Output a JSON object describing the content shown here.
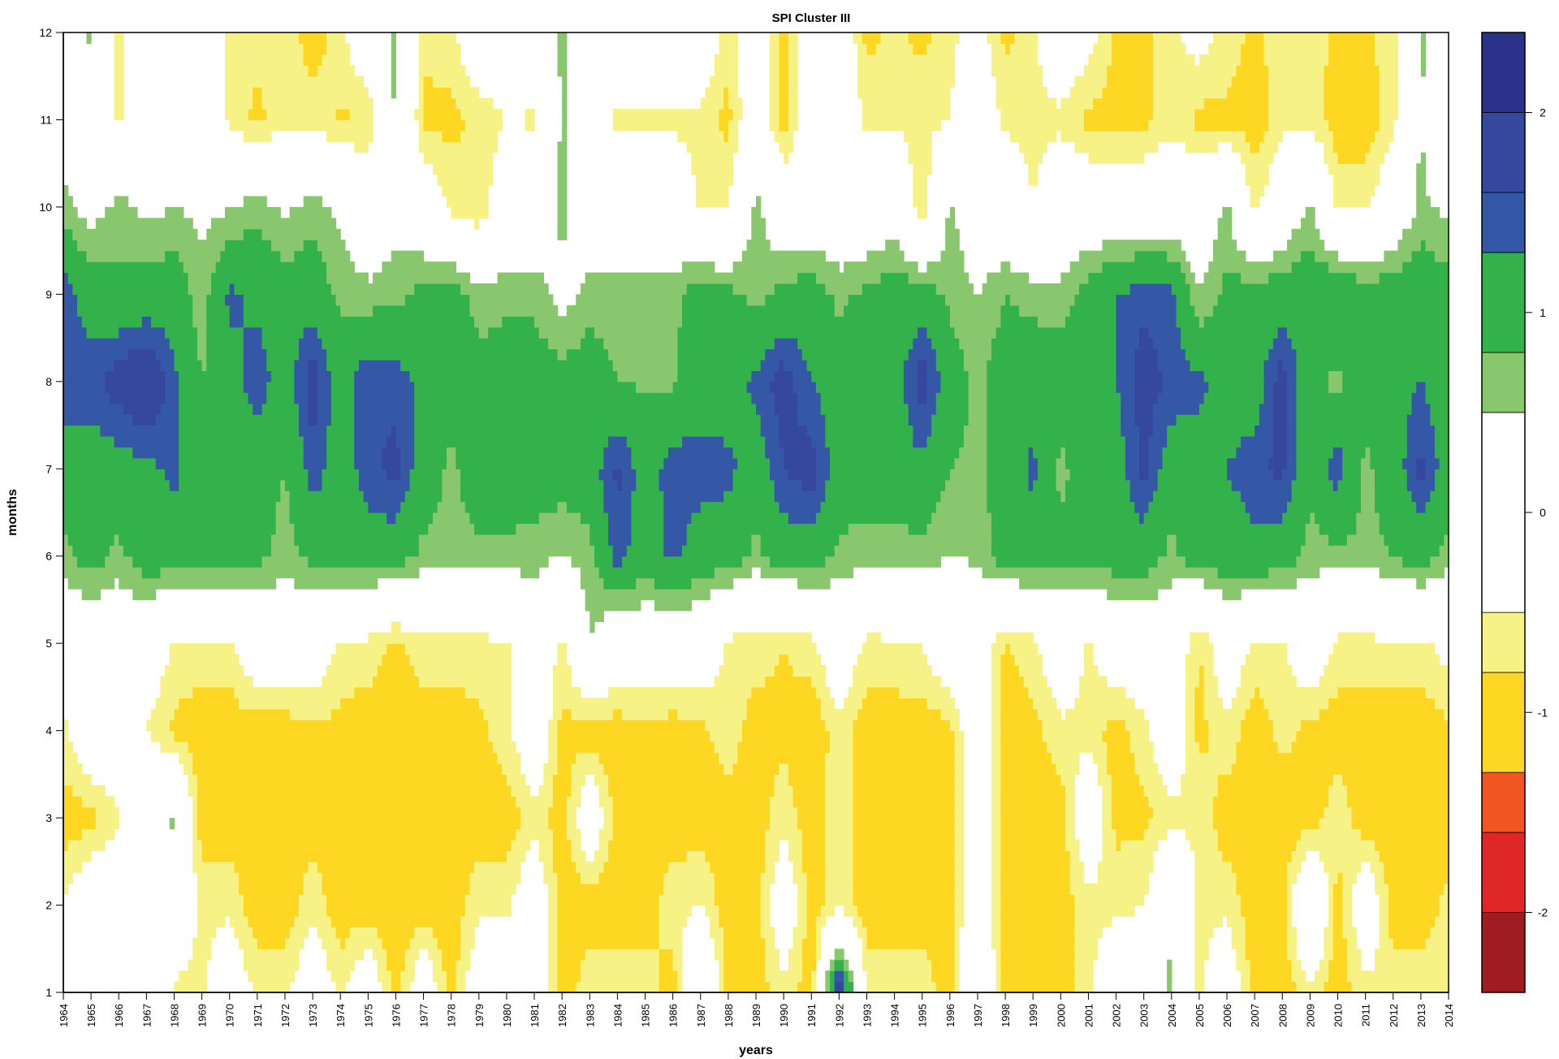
{
  "chart_data": {
    "type": "heatmap",
    "subtype": "filled-contour",
    "title": "SPI Cluster III",
    "xlabel": "years",
    "ylabel": "months",
    "x": [
      1964,
      1965,
      1966,
      1967,
      1968,
      1969,
      1970,
      1971,
      1972,
      1973,
      1974,
      1975,
      1976,
      1977,
      1978,
      1979,
      1980,
      1981,
      1982,
      1983,
      1984,
      1985,
      1986,
      1987,
      1988,
      1989,
      1990,
      1991,
      1992,
      1993,
      1994,
      1995,
      1996,
      1997,
      1998,
      1999,
      2000,
      2001,
      2002,
      2003,
      2004,
      2005,
      2006,
      2007,
      2008,
      2009,
      2010,
      2011,
      2012,
      2013,
      2014
    ],
    "y": [
      1,
      2,
      3,
      4,
      5,
      6,
      7,
      8,
      9,
      10,
      11,
      12
    ],
    "xlim": [
      1964,
      2014
    ],
    "ylim": [
      1,
      12
    ],
    "x_ticks": [
      "1964",
      "1965",
      "1966",
      "1967",
      "1968",
      "1969",
      "1970",
      "1971",
      "1972",
      "1973",
      "1974",
      "1975",
      "1976",
      "1977",
      "1978",
      "1979",
      "1980",
      "1981",
      "1982",
      "1983",
      "1984",
      "1985",
      "1986",
      "1987",
      "1988",
      "1989",
      "1990",
      "1991",
      "1992",
      "1993",
      "1994",
      "1995",
      "1996",
      "1997",
      "1998",
      "1999",
      "2000",
      "2001",
      "2002",
      "2003",
      "2004",
      "2005",
      "2006",
      "2007",
      "2008",
      "2009",
      "2010",
      "2011",
      "2012",
      "2013",
      "2014"
    ],
    "y_ticks": [
      "1",
      "2",
      "3",
      "4",
      "5",
      "6",
      "7",
      "8",
      "9",
      "10",
      "11",
      "12"
    ],
    "z_by_month": {
      "1": [
        0,
        0,
        0,
        0.55,
        -0.6,
        -0.6,
        0,
        -0.6,
        -0.6,
        0,
        -0.6,
        0,
        -1.0,
        0,
        -1.0,
        0,
        0,
        0,
        -1.0,
        -0.6,
        -0.6,
        -0.6,
        -1.0,
        0.55,
        -1.0,
        -1.0,
        -0.6,
        -1.0,
        2.1,
        -0.6,
        -0.6,
        -0.6,
        -1.0,
        0.4,
        -1.0,
        -1.0,
        -1.0,
        -0.6,
        0,
        0,
        0.6,
        -0.6,
        0,
        -1.0,
        -1.0,
        -0.6,
        -1.0,
        -0.6,
        -0.6,
        -0.6,
        -0.6
      ],
      "2": [
        -0.5,
        0,
        0,
        -0.55,
        0,
        -0.6,
        -0.6,
        -1.0,
        -1.0,
        -0.6,
        -1.0,
        -1.0,
        -1.0,
        -1.0,
        -1.0,
        -0.6,
        -0.6,
        0,
        -1.0,
        -1.0,
        -1.0,
        -1.0,
        -0.6,
        -0.5,
        -1.0,
        -1.0,
        0,
        -1.0,
        -0.6,
        -1.0,
        -1.0,
        -1.0,
        -0.9,
        0,
        -1.0,
        -1.0,
        -1.0,
        -0.6,
        -0.6,
        -0.5,
        0.5,
        -0.6,
        -0.6,
        -1.0,
        -1.0,
        0.5,
        -1.0,
        0,
        -1.0,
        -1.0,
        -0.7
      ],
      "3": [
        -1.0,
        -0.9,
        -0.55,
        0,
        0.6,
        -1.0,
        -1.0,
        -1.0,
        -1.0,
        -1.0,
        -0.9,
        -1.0,
        -1.0,
        -1.0,
        -1.0,
        -1.0,
        -1.0,
        -0.6,
        -1.0,
        0,
        -1.0,
        -1.0,
        -1.0,
        -1.0,
        -1.0,
        -1.0,
        -0.6,
        -1.0,
        -0.6,
        -1.0,
        -1.0,
        -1.0,
        -1.0,
        0,
        -1.0,
        -1.0,
        -1.0,
        0,
        -0.9,
        -0.9,
        -0.6,
        -0.6,
        -1.0,
        -1.0,
        -1.0,
        -1.0,
        -0.6,
        -1.0,
        -1.0,
        -1.0,
        -1.0
      ],
      "4": [
        -0.6,
        0,
        0,
        -0.5,
        -0.9,
        -1.0,
        -1.0,
        -1.0,
        -1.0,
        -0.9,
        -0.9,
        -1.0,
        -1.0,
        -1.0,
        -1.0,
        -0.9,
        -0.6,
        0,
        -0.9,
        -1.0,
        -1.0,
        -0.9,
        -1.0,
        -0.9,
        -0.6,
        -1.0,
        -0.9,
        -1.1,
        -0.6,
        -1.0,
        -1.0,
        -1.0,
        -0.9,
        0,
        -1.0,
        -0.9,
        -0.6,
        -0.6,
        -1.0,
        -0.6,
        0,
        -0.9,
        -0.6,
        -1.0,
        -0.7,
        -0.9,
        -1.0,
        -1.0,
        -1.0,
        -1.0,
        -0.9
      ],
      "5": [
        0,
        0,
        0,
        0,
        -0.55,
        -0.6,
        -0.6,
        0,
        0,
        0,
        -0.6,
        -0.6,
        -0.9,
        -0.6,
        -0.6,
        -0.6,
        -0.55,
        0,
        -0.6,
        0.5,
        0,
        0,
        0,
        0,
        -0.6,
        -0.6,
        -0.8,
        -0.6,
        0,
        -0.6,
        -0.55,
        -0.5,
        0,
        0,
        -0.85,
        -0.6,
        0,
        -0.6,
        0,
        0,
        0,
        -0.85,
        0,
        -0.6,
        -0.55,
        0,
        -0.6,
        -0.6,
        -0.55,
        -0.6,
        -0.3
      ],
      "6": [
        0.7,
        1.0,
        0.7,
        1.05,
        1.05,
        1.05,
        1.05,
        0.9,
        0.65,
        0.9,
        1.05,
        1.05,
        1.05,
        0.7,
        0.7,
        0.7,
        0.7,
        0.65,
        0.45,
        0.7,
        1.45,
        1.05,
        1.4,
        1.05,
        1.05,
        0.7,
        1.05,
        1.05,
        0.7,
        0.65,
        0.65,
        0.65,
        0.5,
        0.55,
        1.05,
        1.05,
        0.9,
        1.05,
        1.0,
        1.05,
        0.7,
        1.05,
        1.05,
        1.2,
        1.05,
        0.65,
        0.7,
        0.7,
        0.8,
        1.05,
        0.65
      ],
      "7": [
        1.05,
        1.05,
        1.1,
        1.2,
        1.4,
        1.0,
        0.8,
        1.05,
        0.8,
        1.5,
        1.05,
        1.5,
        1.7,
        1.05,
        0.7,
        1.05,
        1.05,
        1.05,
        1.05,
        1.05,
        1.7,
        1.05,
        1.5,
        1.5,
        1.4,
        1.05,
        1.6,
        1.8,
        1.05,
        1.05,
        1.05,
        1.2,
        0.8,
        0.7,
        1.05,
        1.4,
        0.7,
        1.05,
        1.05,
        1.7,
        1.05,
        1.1,
        1.3,
        1.5,
        1.7,
        0.9,
        1.5,
        0.7,
        1.05,
        1.7,
        1.05
      ],
      "8": [
        1.5,
        1.5,
        1.8,
        2.05,
        1.4,
        0.8,
        1.1,
        1.5,
        1.05,
        1.8,
        1.05,
        1.6,
        1.5,
        1.2,
        1.05,
        1.0,
        1.05,
        1.05,
        1.0,
        1.05,
        0.8,
        0.75,
        0.75,
        1.05,
        1.05,
        1.4,
        1.8,
        1.3,
        1.05,
        1.05,
        1.05,
        1.8,
        1.05,
        0.7,
        1.05,
        1.05,
        1.05,
        1.05,
        1.3,
        1.8,
        1.5,
        1.4,
        1.05,
        1.05,
        1.8,
        0.9,
        0.7,
        1.0,
        1.1,
        1.3,
        1.05
      ],
      "9": [
        1.5,
        1.05,
        0.9,
        1.0,
        1.1,
        0.6,
        1.4,
        1.2,
        1.05,
        1.1,
        0.7,
        0.6,
        0.7,
        0.9,
        1.1,
        0.6,
        0.7,
        0.7,
        0.3,
        0.65,
        0.65,
        0.65,
        0.7,
        1.05,
        0.9,
        0.7,
        0.9,
        1.05,
        0.7,
        0.9,
        1.05,
        1.05,
        0.7,
        0.5,
        0.8,
        0.7,
        0.6,
        1.0,
        1.3,
        1.5,
        1.4,
        0.5,
        0.9,
        1.05,
        1.05,
        1.1,
        1.3,
        1.05,
        1.05,
        1.1,
        1.0
      ],
      "10": [
        0.65,
        0.3,
        0.65,
        0.4,
        0.5,
        0.4,
        0.45,
        0.7,
        0.4,
        0.65,
        0.4,
        0,
        0.3,
        0,
        -0.6,
        -0.8,
        0,
        0,
        0.65,
        0,
        0,
        0,
        0,
        -0.6,
        -0.5,
        0.6,
        0,
        0,
        0,
        0,
        0.2,
        -0.8,
        0.6,
        0,
        0,
        -0.5,
        0,
        0,
        0,
        0,
        0,
        0,
        0.6,
        -0.6,
        0,
        0.6,
        -0.6,
        -0.6,
        0,
        0.6,
        0.4
      ],
      "11": [
        0,
        0,
        -0.6,
        0,
        0,
        0,
        -0.6,
        -0.9,
        -0.6,
        -0.6,
        -0.85,
        -0.8,
        0.6,
        -0.9,
        -0.9,
        -0.7,
        -0.5,
        -0.55,
        0.55,
        0,
        -0.6,
        -0.6,
        -0.6,
        -0.6,
        -0.9,
        0,
        -1.0,
        0,
        0,
        -0.6,
        -0.6,
        -0.6,
        -0.5,
        0,
        -0.6,
        -0.6,
        -0.6,
        -0.9,
        -0.9,
        -0.9,
        -0.6,
        -0.9,
        -0.9,
        -1.0,
        -0.6,
        -0.6,
        -1.0,
        -1.0,
        -0.6,
        0.55,
        -0.6
      ],
      "12": [
        0,
        0.6,
        -0.6,
        0,
        0,
        0,
        -0.6,
        -0.7,
        -0.6,
        -1.0,
        -0.6,
        0,
        0.6,
        -0.7,
        -0.6,
        0,
        0,
        0,
        0.6,
        -0.3,
        0,
        0,
        0,
        0,
        -0.7,
        0,
        -1.0,
        0,
        0,
        -0.9,
        -0.7,
        -0.9,
        -0.6,
        -0.3,
        -0.9,
        -0.6,
        0,
        -0.3,
        -0.9,
        -0.9,
        -0.6,
        -0.3,
        -0.6,
        -0.9,
        -0.6,
        -0.6,
        -0.9,
        -0.9,
        -0.6,
        0.6,
        0
      ]
    },
    "levels": [
      -2.4,
      -2.0,
      -1.6,
      -1.3,
      -0.8,
      -0.5,
      0.5,
      0.8,
      1.3,
      1.6,
      2.0,
      2.4
    ],
    "level_colors": [
      "#9e1c22",
      "#de2726",
      "#f05522",
      "#fed723",
      "#f6f286",
      "#ffffff",
      "#88c76e",
      "#33b14a",
      "#3558a6",
      "#36489e",
      "#2a3389"
    ],
    "colorbar": {
      "ticks": [
        "-2",
        "-1",
        "0",
        "1",
        "2"
      ],
      "tick_values": [
        -2,
        -1,
        0,
        1,
        2
      ],
      "placement": "right"
    },
    "grid": false
  }
}
